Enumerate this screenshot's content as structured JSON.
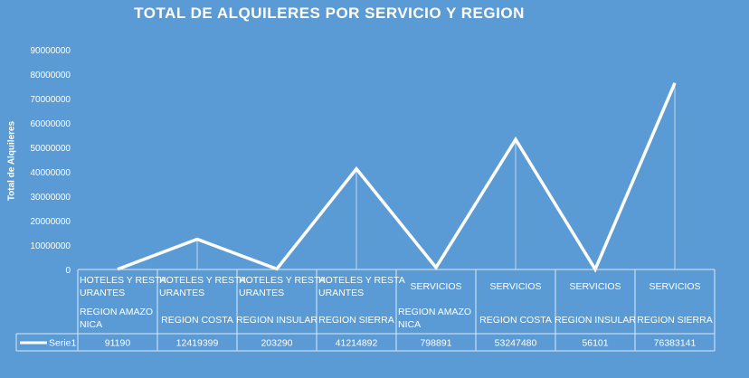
{
  "chart_data": {
    "type": "line",
    "title": "TOTAL DE ALQUILERES POR SERVICIO Y REGION",
    "xlabel": "",
    "ylabel": "Total de Alquileres",
    "ylim": [
      0,
      90000000
    ],
    "yticks": [
      "0",
      "10000000",
      "20000000",
      "30000000",
      "40000000",
      "50000000",
      "60000000",
      "70000000",
      "80000000",
      "90000000"
    ],
    "categories": [
      {
        "service": [
          "HOTELES Y RESTA",
          "URANTES"
        ],
        "region": [
          "REGION AMAZO",
          "NICA"
        ]
      },
      {
        "service": [
          "HOTELES Y RESTA",
          "URANTES"
        ],
        "region": [
          "REGION COSTA"
        ]
      },
      {
        "service": [
          "HOTELES Y RESTA",
          "URANTES"
        ],
        "region": [
          "REGION INSULAR"
        ]
      },
      {
        "service": [
          "HOTELES Y RESTA",
          "URANTES"
        ],
        "region": [
          "REGION SIERRA"
        ]
      },
      {
        "service": [
          "SERVICIOS"
        ],
        "region": [
          "REGION AMAZO",
          "NICA"
        ]
      },
      {
        "service": [
          "SERVICIOS"
        ],
        "region": [
          "REGION COSTA"
        ]
      },
      {
        "service": [
          "SERVICIOS"
        ],
        "region": [
          "REGION INSULAR"
        ]
      },
      {
        "service": [
          "SERVICIOS"
        ],
        "region": [
          "REGION SIERRA"
        ]
      }
    ],
    "series": [
      {
        "name": "Serie1",
        "values": [
          91190,
          12419399,
          203290,
          41214892,
          798891,
          53247480,
          56101,
          76383141
        ]
      }
    ],
    "grid": false,
    "legend": "data-table",
    "colors": {
      "background": "#5b9bd5",
      "line": "#ffffff"
    }
  }
}
